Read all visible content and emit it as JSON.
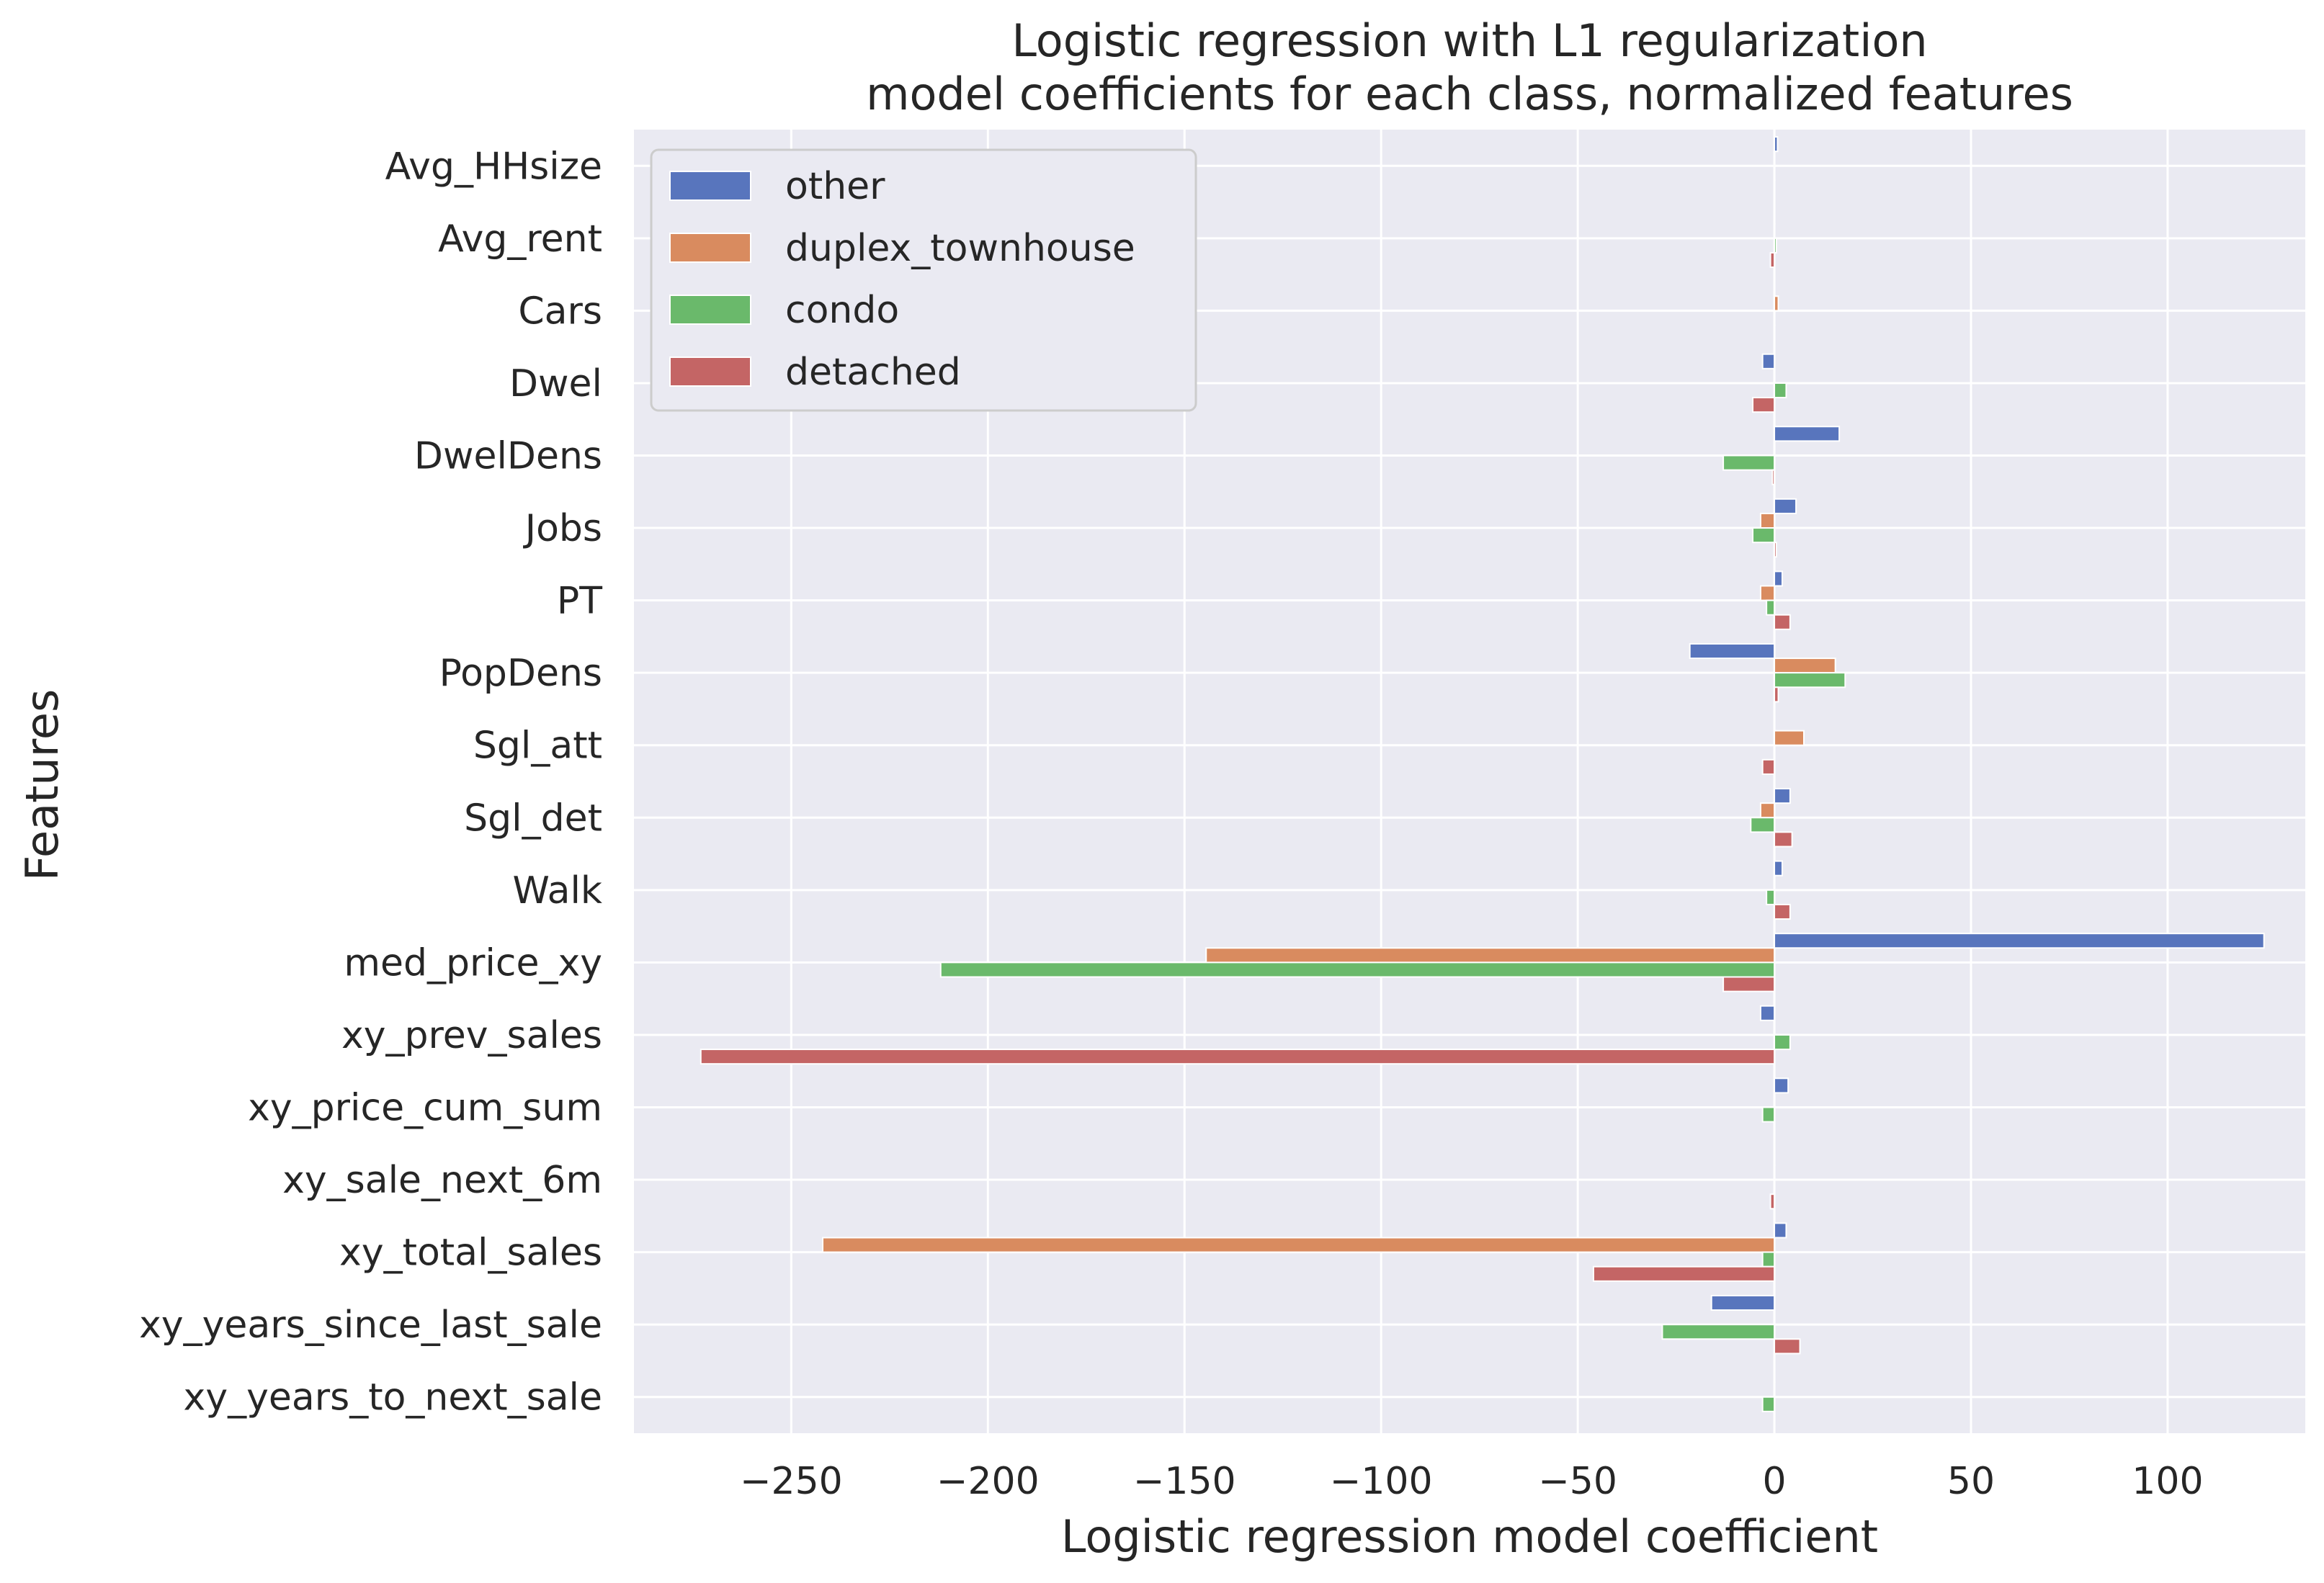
{
  "chart_data": {
    "type": "bar",
    "orientation": "horizontal",
    "title": "Logistic regression with L1 regularization",
    "subtitle": "model coefficients for each class, normalized features",
    "xlabel": "Logistic regression model coefficient",
    "ylabel": "Features",
    "xlim": [
      -290,
      135
    ],
    "xticks": [
      -250,
      -200,
      -150,
      -100,
      -50,
      0,
      50,
      100
    ],
    "xtick_labels": [
      "−250",
      "−200",
      "−150",
      "−100",
      "−50",
      "0",
      "50",
      "100"
    ],
    "grid": true,
    "legend_position": "top-left",
    "categories": [
      "Avg_HHsize",
      "Avg_rent",
      "Cars",
      "Dwel",
      "DwelDens",
      "Jobs",
      "PT",
      "PopDens",
      "Sgl_att",
      "Sgl_det",
      "Walk",
      "med_price_xy",
      "xy_prev_sales",
      "xy_price_cum_sum",
      "xy_sale_next_6m",
      "xy_total_sales",
      "xy_years_since_last_sale",
      "xy_years_to_next_sale"
    ],
    "series": [
      {
        "name": "other",
        "color": "#5875bd",
        "values": [
          0.8,
          0,
          0,
          -3,
          16.5,
          5.5,
          2,
          -21.5,
          0,
          4,
          2,
          124.5,
          -3.5,
          3.5,
          0,
          3,
          -16,
          0
        ]
      },
      {
        "name": "duplex_townhouse",
        "color": "#d98b5f",
        "values": [
          0,
          0,
          1,
          0,
          0,
          -3.5,
          -3.5,
          15.5,
          7.5,
          -3.5,
          0,
          -144.5,
          0,
          0,
          0,
          -242,
          0,
          0
        ]
      },
      {
        "name": "condo",
        "color": "#6ab96b",
        "values": [
          0,
          0.5,
          0,
          3,
          -13,
          -5.5,
          -2,
          18,
          0,
          -6,
          -2,
          -212,
          4,
          -3,
          0,
          -3,
          -28.5,
          -3
        ]
      },
      {
        "name": "detached",
        "color": "#c46565",
        "values": [
          0,
          -1,
          0,
          -5.5,
          -0.5,
          0.5,
          4,
          1,
          -3,
          4.5,
          4,
          -13,
          -273,
          0,
          -1,
          -46,
          6.5,
          0
        ]
      }
    ]
  }
}
